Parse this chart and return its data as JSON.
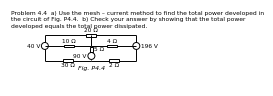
{
  "title_text": "Problem 4.4  a) Use the mesh – current method to find the total power developed in\nthe circuit of Fig. P4.4.  b) Check your answer by showing that the total power\ndeveloped equals the total power dissipated.",
  "fig_label": "Fig. P4.4",
  "res_top": "20 Ω",
  "res_mid_left": "10 Ω",
  "res_mid_right": "4 Ω",
  "res_center_vert": "5 Ω",
  "res_bot_left": "30 Ω",
  "res_bot_right": "2 Ω",
  "src_left": "40 V",
  "src_center": "90 V",
  "src_right": "196 V",
  "bg_color": "#ffffff",
  "line_color": "#000000",
  "text_color": "#000000",
  "title_fontsize": 4.3,
  "label_fontsize": 4.2,
  "fig_label_fontsize": 4.5,
  "lw": 0.7,
  "circ_r": 4.5,
  "RW": 6.5,
  "RH": 1.8,
  "XL": 45,
  "XML": 76,
  "XM": 105,
  "XMR": 132,
  "XR": 163,
  "YT": 66,
  "YM": 52,
  "YB": 33
}
